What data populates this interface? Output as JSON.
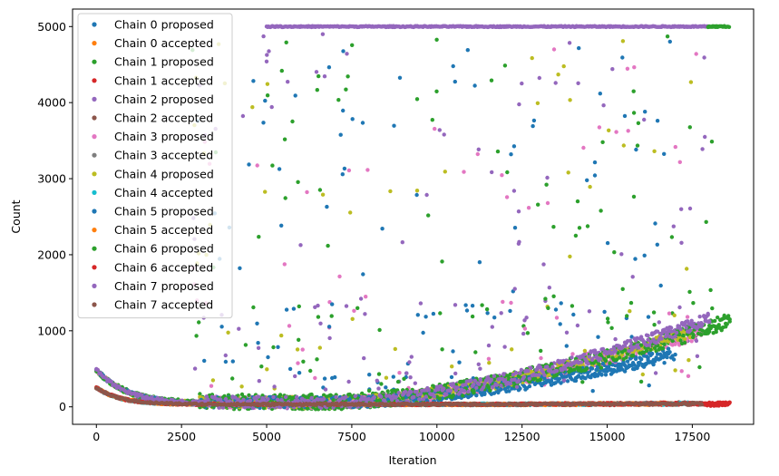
{
  "chart_data": {
    "type": "scatter",
    "xlabel": "Iteration",
    "ylabel": "Count",
    "xlim": [
      -700,
      19300
    ],
    "ylim": [
      -230,
      5230
    ],
    "xticks": [
      0,
      2500,
      5000,
      7500,
      10000,
      12500,
      15000,
      17500
    ],
    "xtick_labels": [
      "0",
      "2500",
      "5000",
      "7500",
      "10000",
      "12500",
      "15000",
      "17500"
    ],
    "yticks": [
      0,
      1000,
      2000,
      3000,
      4000,
      5000
    ],
    "ytick_labels": [
      "0",
      "1000",
      "2000",
      "3000",
      "4000",
      "5000"
    ],
    "grid": false,
    "legend_position": "top-left",
    "series": [
      {
        "name": "Chain 0 proposed",
        "color": "#1f77b4",
        "kind": "proposed",
        "end_x": 17000,
        "end_y": 650,
        "spread": 150
      },
      {
        "name": "Chain 0 accepted",
        "color": "#ff7f0e",
        "kind": "accepted",
        "end_x": 17000,
        "end_y": 50
      },
      {
        "name": "Chain 1 proposed",
        "color": "#2ca02c",
        "kind": "proposed",
        "end_x": 18600,
        "end_y": 1110,
        "spread": 200
      },
      {
        "name": "Chain 1 accepted",
        "color": "#d62728",
        "kind": "accepted",
        "end_x": 18600,
        "end_y": 30
      },
      {
        "name": "Chain 2 proposed",
        "color": "#9467bd",
        "kind": "proposed",
        "end_x": 18000,
        "end_y": 1130,
        "spread": 150
      },
      {
        "name": "Chain 2 accepted",
        "color": "#8c564b",
        "kind": "accepted",
        "end_x": 18000,
        "end_y": 60
      },
      {
        "name": "Chain 3 proposed",
        "color": "#e377c2",
        "kind": "proposed",
        "end_x": 17800,
        "end_y": 950,
        "spread": 150
      },
      {
        "name": "Chain 3 accepted",
        "color": "#7f7f7f",
        "kind": "accepted",
        "end_x": 17800,
        "end_y": 40
      },
      {
        "name": "Chain 4 proposed",
        "color": "#bcbd22",
        "kind": "proposed",
        "end_x": 17500,
        "end_y": 960,
        "spread": 150
      },
      {
        "name": "Chain 4 accepted",
        "color": "#17becf",
        "kind": "accepted",
        "end_x": 17500,
        "end_y": 45
      },
      {
        "name": "Chain 5 proposed",
        "color": "#1f77b4",
        "kind": "proposed",
        "end_x": 16800,
        "end_y": 660,
        "spread": 150
      },
      {
        "name": "Chain 5 accepted",
        "color": "#ff7f0e",
        "kind": "accepted",
        "end_x": 16800,
        "end_y": 45
      },
      {
        "name": "Chain 6 proposed",
        "color": "#2ca02c",
        "kind": "proposed",
        "end_x": 18600,
        "end_y": 1090,
        "spread": 200
      },
      {
        "name": "Chain 6 accepted",
        "color": "#d62728",
        "kind": "accepted",
        "end_x": 18600,
        "end_y": 20
      },
      {
        "name": "Chain 7 proposed",
        "color": "#9467bd",
        "kind": "proposed",
        "end_x": 18000,
        "end_y": 1120,
        "spread": 150
      },
      {
        "name": "Chain 7 accepted",
        "color": "#8c564b",
        "kind": "accepted",
        "end_x": 17800,
        "end_y": 60
      }
    ],
    "saturation_line": {
      "y": 5000,
      "x_start": 5000,
      "x_end": 18600
    }
  }
}
